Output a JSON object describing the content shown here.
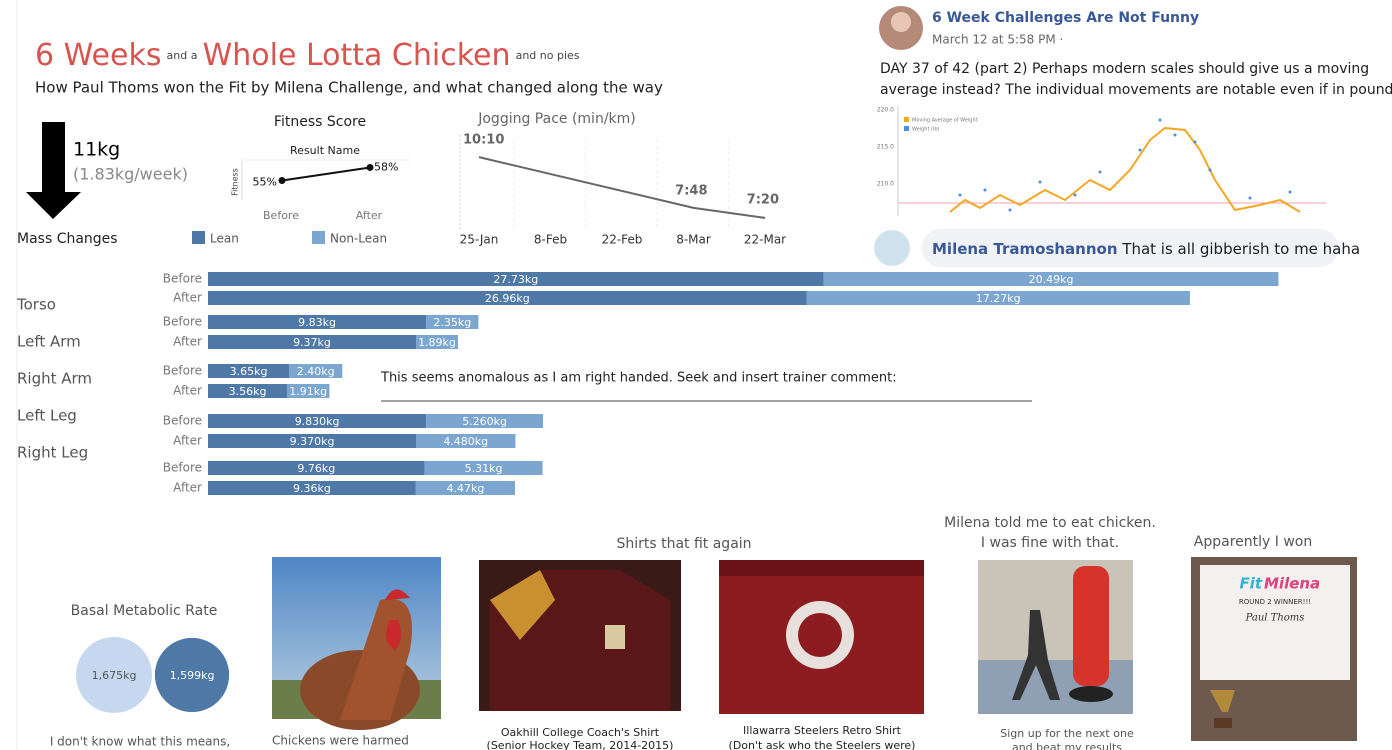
{
  "header": {
    "title_1": "6 Weeks",
    "title_and": "and a",
    "title_2": "Whole Lotta Chicken",
    "title_nopies": "and no pies",
    "subtitle": "How Paul Thoms won the Fit by Milena Challenge, and what changed along the way"
  },
  "mass_total": {
    "change": "11kg",
    "rate": "(1.83kg/week)"
  },
  "facebook_post": {
    "name": "6 Week Challenges Are Not Funny",
    "time": "March 12 at 5:58 PM · ",
    "text_lines": [
      "DAY 37 of 42 (part 2) Perhaps modern scales should give us a moving",
      "average instead? The individual movements are notable even if in pound."
    ],
    "image_legend": [
      "Moving Average of Weight",
      "Weight (lb)"
    ],
    "image_ticks": [
      "220.0",
      "215.0",
      "210.0"
    ]
  },
  "comment": {
    "name": "Milena Tramoshannon",
    "text": "That is all gibberish to me haha"
  },
  "annotation": "This seems anomalous as I am right handed.  Seek and insert trainer comment:",
  "photos": {
    "chicken_caption": "Chickens were harmed",
    "shirts_title": "Shirts that fit again",
    "shirt_1": [
      "Oakhill College Coach's Shirt",
      "(Senior Hockey Team, 2014-2015)"
    ],
    "shirt_2": [
      "Illawarra Steelers Retro Shirt",
      "(Don't ask who the Steelers were)"
    ],
    "milena_title": [
      "Milena told me to eat chicken.",
      "I was fine with that."
    ],
    "milena_caption": [
      "Sign up for the next one",
      "and beat my results"
    ],
    "won_title": "Apparently I won",
    "certificate": [
      "Fit",
      "Milena",
      "ROUND 2 WINNER!!!",
      "Paul Thoms"
    ]
  },
  "chart_data": [
    {
      "type": "line",
      "title": "Fitness Score",
      "subtitle": "Result Name",
      "y_label": "Fitness",
      "categories": [
        "Before",
        "After"
      ],
      "values": [
        55,
        58
      ],
      "value_labels": [
        "55%",
        "58%"
      ],
      "color": "#111111",
      "ylim": [
        45,
        65
      ]
    },
    {
      "type": "line",
      "title": "Jogging Pace (min/km)",
      "xticks": [
        "25-Jan",
        "8-Feb",
        "22-Feb",
        "8-Mar",
        "22-Mar"
      ],
      "x": [
        "25-Jan",
        "8-Mar",
        "22-Mar"
      ],
      "values": [
        10.1667,
        7.8,
        7.3333
      ],
      "value_labels": [
        "10:10",
        "7:48",
        "7:20"
      ],
      "color": "#666666",
      "ylim": [
        7,
        10.5
      ]
    },
    {
      "type": "bar",
      "orientation": "horizontal",
      "stacked": true,
      "title": "Mass Changes",
      "categories": [
        "Torso",
        "Left Arm",
        "Right Arm",
        "Left Leg",
        "Right Leg"
      ],
      "row_labels": [
        "Before",
        "After"
      ],
      "xlim": [
        0,
        50
      ],
      "series": [
        {
          "name": "Lean",
          "color": "#4e79a7",
          "values": [
            [
              27.73,
              26.96
            ],
            [
              9.83,
              9.37
            ],
            [
              3.65,
              3.56
            ],
            [
              9.83,
              9.37
            ],
            [
              9.76,
              9.36
            ]
          ],
          "value_labels": [
            [
              "27.73kg",
              "26.96kg"
            ],
            [
              "9.83kg",
              "9.37kg"
            ],
            [
              "3.65kg",
              "3.56kg"
            ],
            [
              "9.830kg",
              "9.370kg"
            ],
            [
              "9.76kg",
              "9.36kg"
            ]
          ]
        },
        {
          "name": "Non-Lean",
          "color": "#7aa6d0",
          "values": [
            [
              20.49,
              17.27
            ],
            [
              2.35,
              1.89
            ],
            [
              2.4,
              1.91
            ],
            [
              5.26,
              4.48
            ],
            [
              5.31,
              4.47
            ]
          ],
          "value_labels": [
            [
              "20.49kg",
              "17.27kg"
            ],
            [
              "2.35kg",
              "1.89kg"
            ],
            [
              "2.40kg",
              "1.91kg"
            ],
            [
              "5.260kg",
              "4.480kg"
            ],
            [
              "5.31kg",
              "4.47kg"
            ]
          ]
        }
      ]
    },
    {
      "type": "bubble",
      "title": "Basal Metabolic Rate",
      "values": [
        1675,
        1599
      ],
      "value_labels": [
        "1,675kg",
        "1,599kg"
      ],
      "colors": [
        "#c6d8f0",
        "#4e79a7"
      ],
      "caption": "I don't know what this means,"
    }
  ]
}
